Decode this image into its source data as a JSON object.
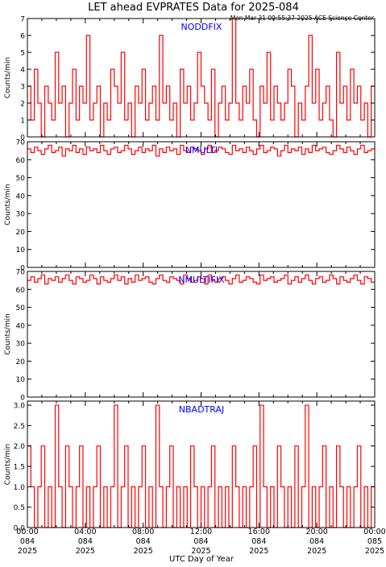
{
  "header": {
    "title": "LET ahead EVPRATES Data for 2025-084",
    "timestamp": "Mon Mar 31 09:55:37 2025 ACE Science Center"
  },
  "colors": {
    "series": "#ff0000",
    "panel_label": "#0000ff",
    "axis": "#000000",
    "background": "#ffffff"
  },
  "x_axis": {
    "label": "UTC Day of Year",
    "ticks": [
      {
        "time": "00:00",
        "day": "084",
        "year": "2025"
      },
      {
        "time": "04:00",
        "day": "084",
        "year": "2025"
      },
      {
        "time": "08:00",
        "day": "084",
        "year": "2025"
      },
      {
        "time": "12:00",
        "day": "084",
        "year": "2025"
      },
      {
        "time": "16:00",
        "day": "084",
        "year": "2025"
      },
      {
        "time": "20:00",
        "day": "084",
        "year": "2025"
      },
      {
        "time": "00:00",
        "day": "085",
        "year": "2025"
      }
    ],
    "range_hours": [
      0,
      24
    ]
  },
  "chart_data": [
    {
      "type": "line",
      "name": "NODDFIX",
      "ylabel": "Counts/min",
      "ylim": [
        0,
        7
      ],
      "yticks": [
        0,
        1,
        2,
        3,
        4,
        5,
        6,
        7
      ],
      "ytick_labels": [
        "0",
        "1",
        "2",
        "3",
        "4",
        "5",
        "6",
        "7"
      ],
      "xlabel": "UTC Day of Year",
      "x_range_hours": [
        0,
        24
      ],
      "values": [
        3,
        1,
        4,
        2,
        0,
        3,
        2,
        1,
        5,
        2,
        3,
        0,
        2,
        4,
        1,
        3,
        2,
        6,
        1,
        2,
        3,
        0,
        2,
        1,
        4,
        3,
        2,
        5,
        1,
        2,
        0,
        3,
        2,
        4,
        1,
        2,
        3,
        1,
        6,
        2,
        3,
        1,
        2,
        0,
        4,
        2,
        3,
        1,
        2,
        5,
        3,
        2,
        1,
        4,
        0,
        2,
        3,
        1,
        2,
        7,
        2,
        1,
        3,
        2,
        4,
        1,
        0,
        3,
        2,
        5,
        1,
        3,
        2,
        1,
        2,
        4,
        3,
        0,
        2,
        1,
        3,
        6,
        2,
        4,
        1,
        2,
        3,
        1,
        0,
        5,
        2,
        3,
        1,
        4,
        2,
        3,
        1,
        2,
        0,
        3
      ]
    },
    {
      "type": "line",
      "name": "NMULTI",
      "ylabel": "Counts/min",
      "ylim": [
        0,
        70
      ],
      "yticks": [
        0,
        10,
        20,
        30,
        40,
        50,
        60,
        70
      ],
      "ytick_labels": [
        "0",
        "10",
        "20",
        "30",
        "40",
        "50",
        "60",
        "70"
      ],
      "xlabel": "UTC Day of Year",
      "x_range_hours": [
        0,
        24
      ],
      "values": [
        66,
        64,
        67,
        65,
        63,
        66,
        68,
        64,
        65,
        67,
        62,
        66,
        65,
        68,
        64,
        66,
        63,
        67,
        65,
        66,
        64,
        68,
        65,
        63,
        66,
        67,
        64,
        65,
        68,
        66,
        63,
        65,
        67,
        64,
        66,
        65,
        68,
        62,
        66,
        64,
        67,
        65,
        66,
        63,
        68,
        65,
        64,
        67,
        66,
        65,
        63,
        66,
        68,
        64,
        65,
        67,
        66,
        64,
        63,
        68,
        65,
        66,
        64,
        67,
        65,
        63,
        66,
        68,
        64,
        65,
        67,
        66,
        62,
        65,
        68,
        64,
        66,
        65,
        67,
        63,
        66,
        64,
        68,
        65,
        66,
        67,
        64,
        63,
        65,
        68,
        66,
        64,
        67,
        65,
        63,
        66,
        68,
        64,
        65,
        66
      ]
    },
    {
      "type": "line",
      "name": "NMULTIFIX",
      "ylabel": "Counts/min",
      "ylim": [
        0,
        70
      ],
      "yticks": [
        0,
        10,
        20,
        30,
        40,
        50,
        60,
        70
      ],
      "ytick_labels": [
        "0",
        "10",
        "20",
        "30",
        "40",
        "50",
        "60",
        "70"
      ],
      "xlabel": "UTC Day of Year",
      "x_range_hours": [
        0,
        24
      ],
      "values": [
        65,
        67,
        64,
        66,
        68,
        63,
        66,
        65,
        67,
        64,
        66,
        68,
        65,
        63,
        67,
        66,
        64,
        65,
        68,
        66,
        63,
        67,
        65,
        64,
        66,
        68,
        65,
        67,
        63,
        66,
        64,
        68,
        65,
        66,
        67,
        64,
        63,
        66,
        68,
        65,
        64,
        67,
        66,
        65,
        63,
        68,
        66,
        64,
        65,
        67,
        66,
        63,
        68,
        65,
        64,
        66,
        67,
        65,
        63,
        66,
        68,
        64,
        65,
        67,
        66,
        64,
        63,
        68,
        65,
        66,
        67,
        64,
        65,
        66,
        68,
        63,
        65,
        67,
        64,
        66,
        68,
        65,
        63,
        66,
        67,
        64,
        65,
        68,
        66,
        63,
        67,
        65,
        64,
        66,
        68,
        65,
        63,
        67,
        66,
        64
      ]
    },
    {
      "type": "line",
      "name": "NBADTRAJ",
      "ylabel": "Counts/min",
      "ylim": [
        0,
        3.1
      ],
      "yticks": [
        0,
        0.5,
        1,
        1.5,
        2,
        2.5,
        3
      ],
      "ytick_labels": [
        "0.0",
        "0.5",
        "1.0",
        "1.5",
        "2.0",
        "2.5",
        "3.0"
      ],
      "xlabel": "UTC Day of Year",
      "x_range_hours": [
        0,
        24
      ],
      "values": [
        2,
        1,
        0,
        1,
        2,
        0,
        1,
        0,
        3,
        1,
        0,
        2,
        1,
        0,
        1,
        2,
        0,
        1,
        0,
        1,
        2,
        0,
        1,
        0,
        1,
        3,
        0,
        1,
        2,
        0,
        1,
        0,
        1,
        2,
        0,
        1,
        0,
        3,
        1,
        0,
        1,
        2,
        0,
        1,
        0,
        1,
        0,
        2,
        1,
        0,
        1,
        0,
        1,
        2,
        0,
        1,
        0,
        1,
        0,
        2,
        1,
        0,
        1,
        0,
        1,
        2,
        0,
        3,
        1,
        0,
        1,
        0,
        2,
        1,
        0,
        1,
        0,
        2,
        0,
        1,
        3,
        0,
        1,
        0,
        1,
        2,
        0,
        1,
        0,
        2,
        1,
        0,
        1,
        0,
        1,
        2,
        0,
        1,
        0,
        1
      ]
    }
  ]
}
